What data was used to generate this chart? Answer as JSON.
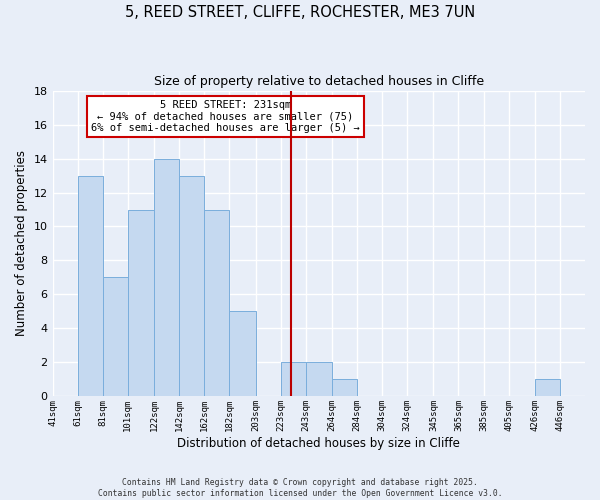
{
  "title": "5, REED STREET, CLIFFE, ROCHESTER, ME3 7UN",
  "subtitle": "Size of property relative to detached houses in Cliffe",
  "xlabel": "Distribution of detached houses by size in Cliffe",
  "ylabel": "Number of detached properties",
  "bar_color": "#c5d9f0",
  "bar_edge_color": "#7aaedc",
  "background_color": "#e8eef8",
  "grid_color": "#ffffff",
  "bin_labels": [
    "41sqm",
    "61sqm",
    "81sqm",
    "101sqm",
    "122sqm",
    "142sqm",
    "162sqm",
    "182sqm",
    "203sqm",
    "223sqm",
    "243sqm",
    "264sqm",
    "284sqm",
    "304sqm",
    "324sqm",
    "345sqm",
    "365sqm",
    "385sqm",
    "405sqm",
    "426sqm",
    "446sqm"
  ],
  "bin_edges": [
    41,
    61,
    81,
    101,
    122,
    142,
    162,
    182,
    203,
    223,
    243,
    264,
    284,
    304,
    324,
    345,
    365,
    385,
    405,
    426,
    446
  ],
  "counts": [
    0,
    13,
    7,
    11,
    14,
    13,
    11,
    5,
    0,
    2,
    2,
    1,
    0,
    0,
    0,
    0,
    0,
    0,
    0,
    1,
    0
  ],
  "ylim": [
    0,
    18
  ],
  "yticks": [
    0,
    2,
    4,
    6,
    8,
    10,
    12,
    14,
    16,
    18
  ],
  "vline_x": 231,
  "vline_color": "#bb0000",
  "annotation_title": "5 REED STREET: 231sqm",
  "annotation_line1": "← 94% of detached houses are smaller (75)",
  "annotation_line2": "6% of semi-detached houses are larger (5) →",
  "annotation_box_color": "#ffffff",
  "annotation_box_edge": "#cc0000",
  "footer_line1": "Contains HM Land Registry data © Crown copyright and database right 2025.",
  "footer_line2": "Contains public sector information licensed under the Open Government Licence v3.0."
}
